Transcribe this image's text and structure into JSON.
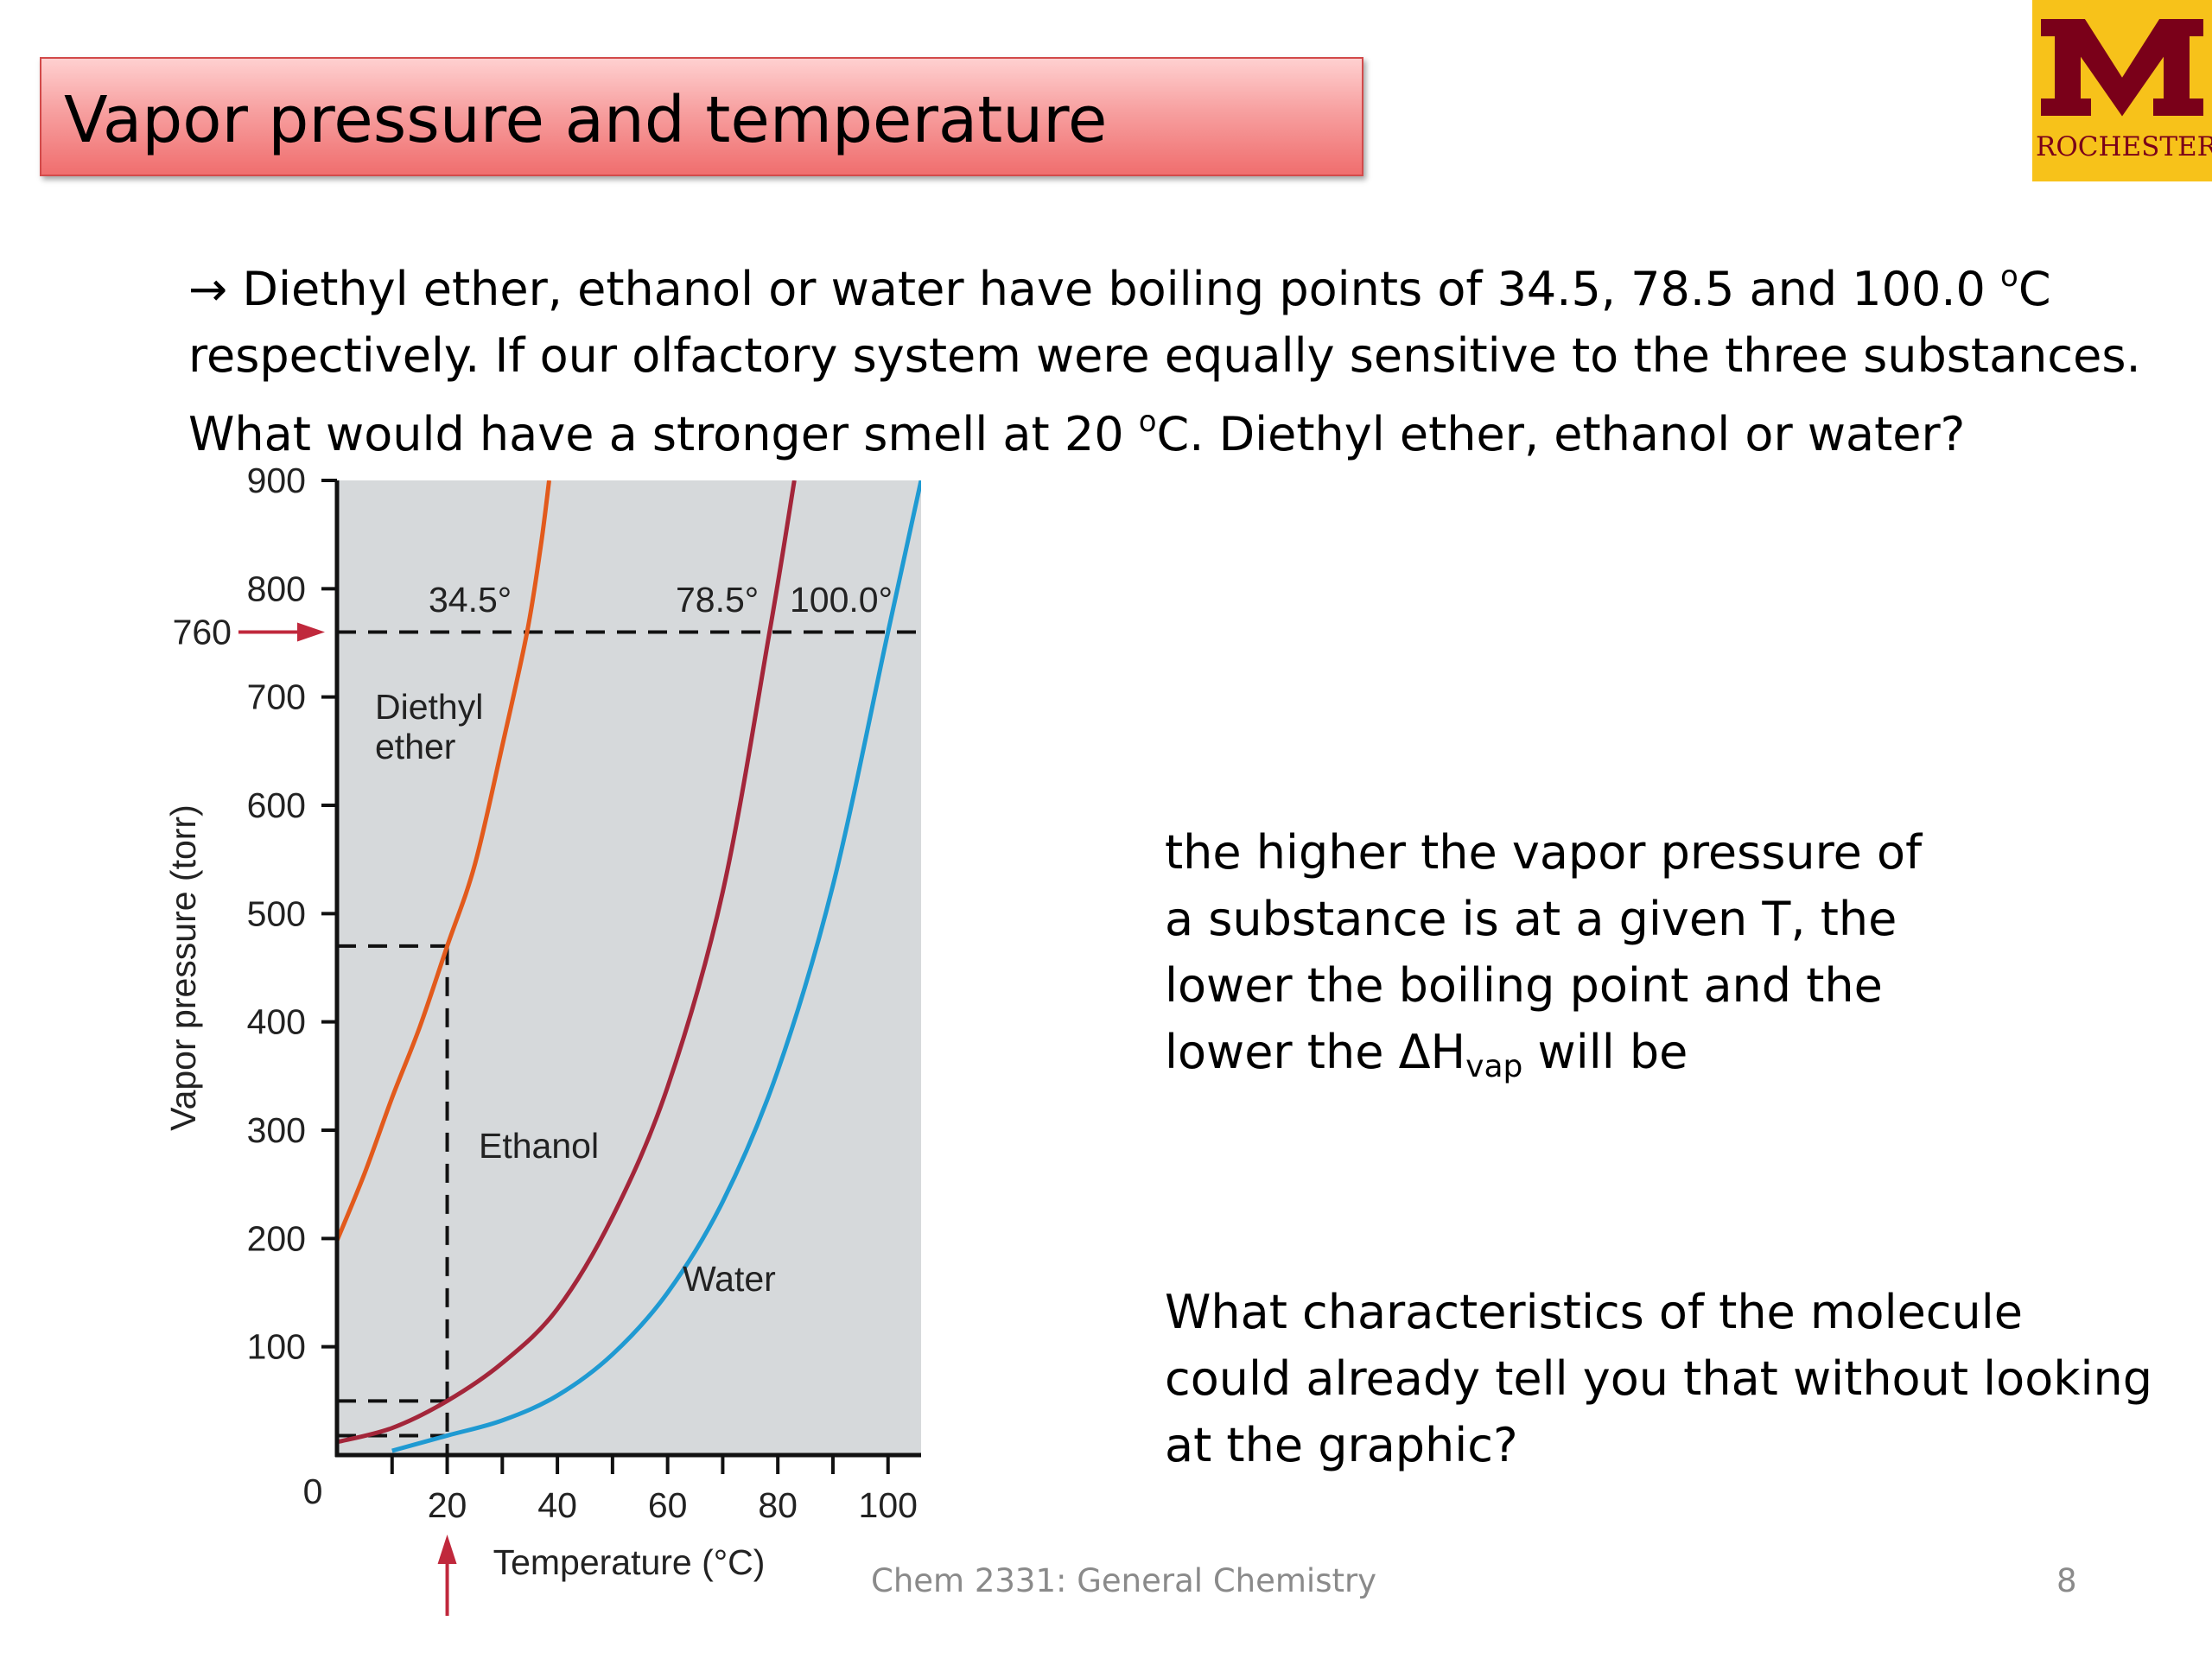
{
  "title": "Vapor pressure and temperature",
  "logo": {
    "text": "ROCHESTER"
  },
  "question": {
    "arrow": "→",
    "line1": "Diethyl ether, ethanol or water have boiling points of 34.5, 78.5 and 100.0 ",
    "unit1": "o",
    "unit1_tail": "C",
    "line2": "respectively. If our olfactory system were equally sensitive to the three substances.",
    "line3_a": "What would have a stronger smell at 20 ",
    "unit3": "o",
    "line3_b": "C. Diethyl ether, ethanol or water?"
  },
  "note1": {
    "line1": "the higher the vapor pressure of",
    "line2": "a substance is at a given T, the",
    "line3": "lower the boiling point and the",
    "line4_a": "lower the ΔH",
    "line4_sub": "vap",
    "line4_b": " will be"
  },
  "note2": {
    "line1": "What characteristics of the molecule",
    "line2": "could already tell you that without looking",
    "line3": "at the graphic?"
  },
  "footer": {
    "course": "Chem 2331: General Chemistry",
    "page": "8"
  },
  "chart_data": {
    "type": "line",
    "xlabel": "Temperature (°C)",
    "ylabel": "Vapor pressure (torr)",
    "xlim": [
      0,
      106
    ],
    "ylim": [
      0,
      900
    ],
    "xticks": [
      20,
      40,
      60,
      80,
      100
    ],
    "yticks": [
      100,
      200,
      300,
      400,
      500,
      600,
      700,
      800,
      900
    ],
    "origin_label": "0",
    "grid": false,
    "background": "#d6d9db",
    "reference_line": {
      "y": 760,
      "label": "760",
      "color": "#c0283c"
    },
    "x_marker": {
      "x": 20,
      "color": "#c0283c"
    },
    "series": [
      {
        "name": "Diethyl ether",
        "label_line1": "Diethyl",
        "label_line2": "ether",
        "color": "#e25a1c",
        "boiling_label": "34.5°",
        "at_20": 470,
        "points": [
          [
            0,
            198
          ],
          [
            5,
            260
          ],
          [
            10,
            330
          ],
          [
            15,
            395
          ],
          [
            20,
            470
          ],
          [
            25,
            545
          ],
          [
            30,
            655
          ],
          [
            34.5,
            760
          ],
          [
            37,
            840
          ],
          [
            38.5,
            900
          ]
        ]
      },
      {
        "name": "Ethanol",
        "label": "Ethanol",
        "color": "#a3263a",
        "boiling_label": "78.5°",
        "at_20": 50,
        "points": [
          [
            0,
            12
          ],
          [
            10,
            25
          ],
          [
            20,
            50
          ],
          [
            30,
            85
          ],
          [
            40,
            135
          ],
          [
            50,
            220
          ],
          [
            60,
            340
          ],
          [
            70,
            520
          ],
          [
            78.5,
            760
          ],
          [
            83,
            900
          ]
        ]
      },
      {
        "name": "Water",
        "label": "Water",
        "color": "#1f9ad2",
        "boiling_label": "100.0°",
        "at_20": 18,
        "points": [
          [
            10,
            4
          ],
          [
            20,
            18
          ],
          [
            30,
            32
          ],
          [
            40,
            55
          ],
          [
            50,
            93
          ],
          [
            60,
            150
          ],
          [
            70,
            234
          ],
          [
            80,
            355
          ],
          [
            90,
            526
          ],
          [
            100,
            760
          ],
          [
            106,
            900
          ]
        ]
      }
    ]
  }
}
